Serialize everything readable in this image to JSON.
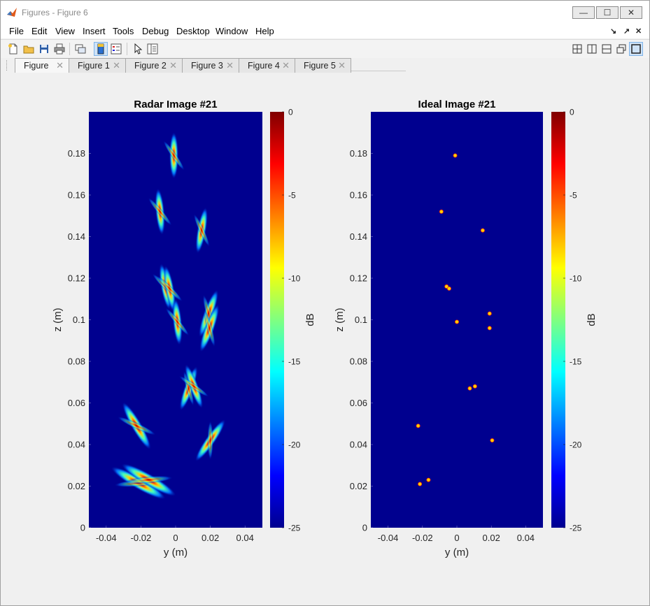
{
  "window": {
    "title": "Figures - Figure 6",
    "controls": {
      "minimize": "—",
      "maximize": "☐",
      "close": "✕"
    }
  },
  "menu": [
    "File",
    "Edit",
    "View",
    "Insert",
    "Tools",
    "Debug",
    "Desktop",
    "Window",
    "Help"
  ],
  "menu_right": {
    "dock": "↘",
    "undock": "↗",
    "close": "✕"
  },
  "tabs": [
    {
      "label": "Figure",
      "active": true
    },
    {
      "label": "Figure 1",
      "active": false
    },
    {
      "label": "Figure 2",
      "active": false
    },
    {
      "label": "Figure 3",
      "active": false
    },
    {
      "label": "Figure 4",
      "active": false
    },
    {
      "label": "Figure 5",
      "active": false
    }
  ],
  "tab_close_glyph": "✕",
  "colors": {
    "plot_background": "#00008f",
    "accent": "#7eb4ea"
  },
  "chart_data": [
    {
      "type": "heatmap",
      "title": "Radar Image #21",
      "xlabel": "y (m)",
      "ylabel": "z (m)",
      "xlim": [
        -0.05,
        0.05
      ],
      "ylim": [
        0,
        0.2
      ],
      "xticks": [
        "-0.04",
        "-0.02",
        "0",
        "0.02",
        "0.04"
      ],
      "xtick_values": [
        -0.04,
        -0.02,
        0,
        0.02,
        0.04
      ],
      "yticks": [
        "0",
        "0.02",
        "0.04",
        "0.06",
        "0.08",
        "0.1",
        "0.12",
        "0.14",
        "0.16",
        "0.18"
      ],
      "ytick_values": [
        0,
        0.02,
        0.04,
        0.06,
        0.08,
        0.1,
        0.12,
        0.14,
        0.16,
        0.18
      ],
      "colormap": "jet",
      "colorbar": {
        "label": "dB",
        "range": [
          -25,
          0
        ],
        "ticks": [
          "0",
          "-5",
          "-10",
          "-15",
          "-20",
          "-25"
        ],
        "tick_values": [
          0,
          -5,
          -10,
          -15,
          -20,
          -25
        ]
      },
      "features": [
        {
          "y": -0.001,
          "z": 0.179,
          "orientation_deg": 90,
          "extent": 0.012
        },
        {
          "y": -0.009,
          "z": 0.152,
          "orientation_deg": 95,
          "extent": 0.012
        },
        {
          "y": 0.015,
          "z": 0.143,
          "orientation_deg": 80,
          "extent": 0.012
        },
        {
          "y": -0.006,
          "z": 0.116,
          "orientation_deg": 100,
          "extent": 0.012
        },
        {
          "y": -0.0035,
          "z": 0.115,
          "orientation_deg": 100,
          "extent": 0.012
        },
        {
          "y": 0.001,
          "z": 0.099,
          "orientation_deg": 95,
          "extent": 0.012
        },
        {
          "y": 0.019,
          "z": 0.103,
          "orientation_deg": 70,
          "extent": 0.013
        },
        {
          "y": 0.0195,
          "z": 0.096,
          "orientation_deg": 70,
          "extent": 0.013
        },
        {
          "y": 0.0075,
          "z": 0.067,
          "orientation_deg": 70,
          "extent": 0.012
        },
        {
          "y": 0.0105,
          "z": 0.068,
          "orientation_deg": 110,
          "extent": 0.012
        },
        {
          "y": -0.0225,
          "z": 0.049,
          "orientation_deg": 120,
          "extent": 0.014
        },
        {
          "y": 0.02,
          "z": 0.042,
          "orientation_deg": 55,
          "extent": 0.013
        },
        {
          "y": -0.0215,
          "z": 0.0215,
          "orientation_deg": 150,
          "extent": 0.016
        },
        {
          "y": -0.0155,
          "z": 0.023,
          "orientation_deg": 150,
          "extent": 0.016
        }
      ]
    },
    {
      "type": "heatmap",
      "title": "Ideal Image #21",
      "xlabel": "y (m)",
      "ylabel": "z (m)",
      "xlim": [
        -0.05,
        0.05
      ],
      "ylim": [
        0,
        0.2
      ],
      "xticks": [
        "-0.04",
        "-0.02",
        "0",
        "0.02",
        "0.04"
      ],
      "xtick_values": [
        -0.04,
        -0.02,
        0,
        0.02,
        0.04
      ],
      "yticks": [
        "0",
        "0.02",
        "0.04",
        "0.06",
        "0.08",
        "0.1",
        "0.12",
        "0.14",
        "0.16",
        "0.18"
      ],
      "ytick_values": [
        0,
        0.02,
        0.04,
        0.06,
        0.08,
        0.1,
        0.12,
        0.14,
        0.16,
        0.18
      ],
      "colormap": "jet",
      "colorbar": {
        "label": "dB",
        "range": [
          -25,
          0
        ],
        "ticks": [
          "0",
          "-5",
          "-10",
          "-15",
          "-20",
          "-25"
        ],
        "tick_values": [
          0,
          -5,
          -10,
          -15,
          -20,
          -25
        ]
      },
      "points": [
        {
          "y": -0.001,
          "z": 0.179
        },
        {
          "y": -0.009,
          "z": 0.152
        },
        {
          "y": 0.015,
          "z": 0.143
        },
        {
          "y": -0.006,
          "z": 0.116
        },
        {
          "y": -0.0045,
          "z": 0.115
        },
        {
          "y": 0.0,
          "z": 0.099
        },
        {
          "y": 0.019,
          "z": 0.103
        },
        {
          "y": 0.019,
          "z": 0.096
        },
        {
          "y": 0.0075,
          "z": 0.067
        },
        {
          "y": 0.0105,
          "z": 0.068
        },
        {
          "y": -0.0225,
          "z": 0.049
        },
        {
          "y": 0.0205,
          "z": 0.042
        },
        {
          "y": -0.0215,
          "z": 0.021
        },
        {
          "y": -0.0165,
          "z": 0.023
        }
      ]
    }
  ]
}
